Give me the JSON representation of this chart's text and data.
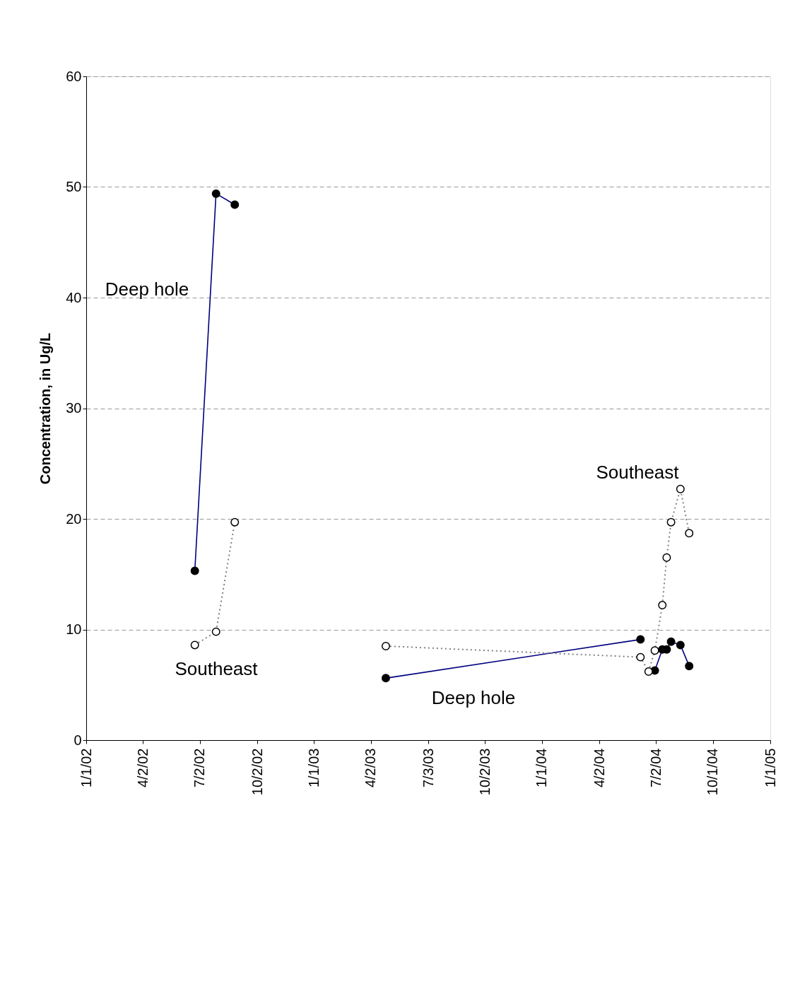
{
  "chart_data": {
    "type": "line",
    "ylabel": "Concentration, in Ug/L",
    "ylim": [
      0,
      60
    ],
    "yticks": [
      0,
      10,
      20,
      30,
      40,
      50,
      60
    ],
    "xlim": [
      "2002-01-01",
      "2005-01-01"
    ],
    "xticks": [
      {
        "value": "2002-01-01",
        "label": "1/1/02"
      },
      {
        "value": "2002-04-02",
        "label": "4/2/02"
      },
      {
        "value": "2002-07-02",
        "label": "7/2/02"
      },
      {
        "value": "2002-10-02",
        "label": "10/2/02"
      },
      {
        "value": "2003-01-01",
        "label": "1/1/03"
      },
      {
        "value": "2003-04-02",
        "label": "4/2/03"
      },
      {
        "value": "2003-07-03",
        "label": "7/3/03"
      },
      {
        "value": "2003-10-02",
        "label": "10/2/03"
      },
      {
        "value": "2004-01-01",
        "label": "1/1/04"
      },
      {
        "value": "2004-04-02",
        "label": "4/2/04"
      },
      {
        "value": "2004-07-02",
        "label": "7/2/04"
      },
      {
        "value": "2004-10-01",
        "label": "10/1/04"
      },
      {
        "value": "2005-01-01",
        "label": "1/1/05"
      }
    ],
    "grid": "y",
    "marker": "circle",
    "series": [
      {
        "color": "#000080",
        "line_style": "solid",
        "x": [
          "2002-06-24",
          "2002-07-28",
          "2002-08-27",
          "2002-12-01",
          "2003-04-26",
          "2004-06-07",
          "2004-06-20",
          "2004-06-30",
          "2004-07-12",
          "2004-07-19",
          "2004-07-26",
          "2004-08-10",
          "2004-08-24"
        ],
        "values": [
          15.3,
          49.4,
          48.4,
          null,
          5.6,
          9.1,
          null,
          6.3,
          8.2,
          8.2,
          8.9,
          8.6,
          6.7
        ]
      },
      {
        "color": "#808080",
        "line_style": "dotted",
        "x": [
          "2002-06-24",
          "2002-07-28",
          "2002-08-27",
          "2002-12-01",
          "2003-04-26",
          "2004-06-07",
          "2004-06-20",
          "2004-06-30",
          "2004-07-12",
          "2004-07-19",
          "2004-07-26",
          "2004-08-10",
          "2004-08-24"
        ],
        "values": [
          8.6,
          9.8,
          19.7,
          null,
          8.5,
          7.5,
          6.2,
          8.1,
          12.2,
          16.5,
          19.7,
          22.7,
          18.7
        ]
      }
    ],
    "annotations": [
      "Deep hole",
      "Southeast",
      "Southeast",
      "Deep hole"
    ]
  }
}
